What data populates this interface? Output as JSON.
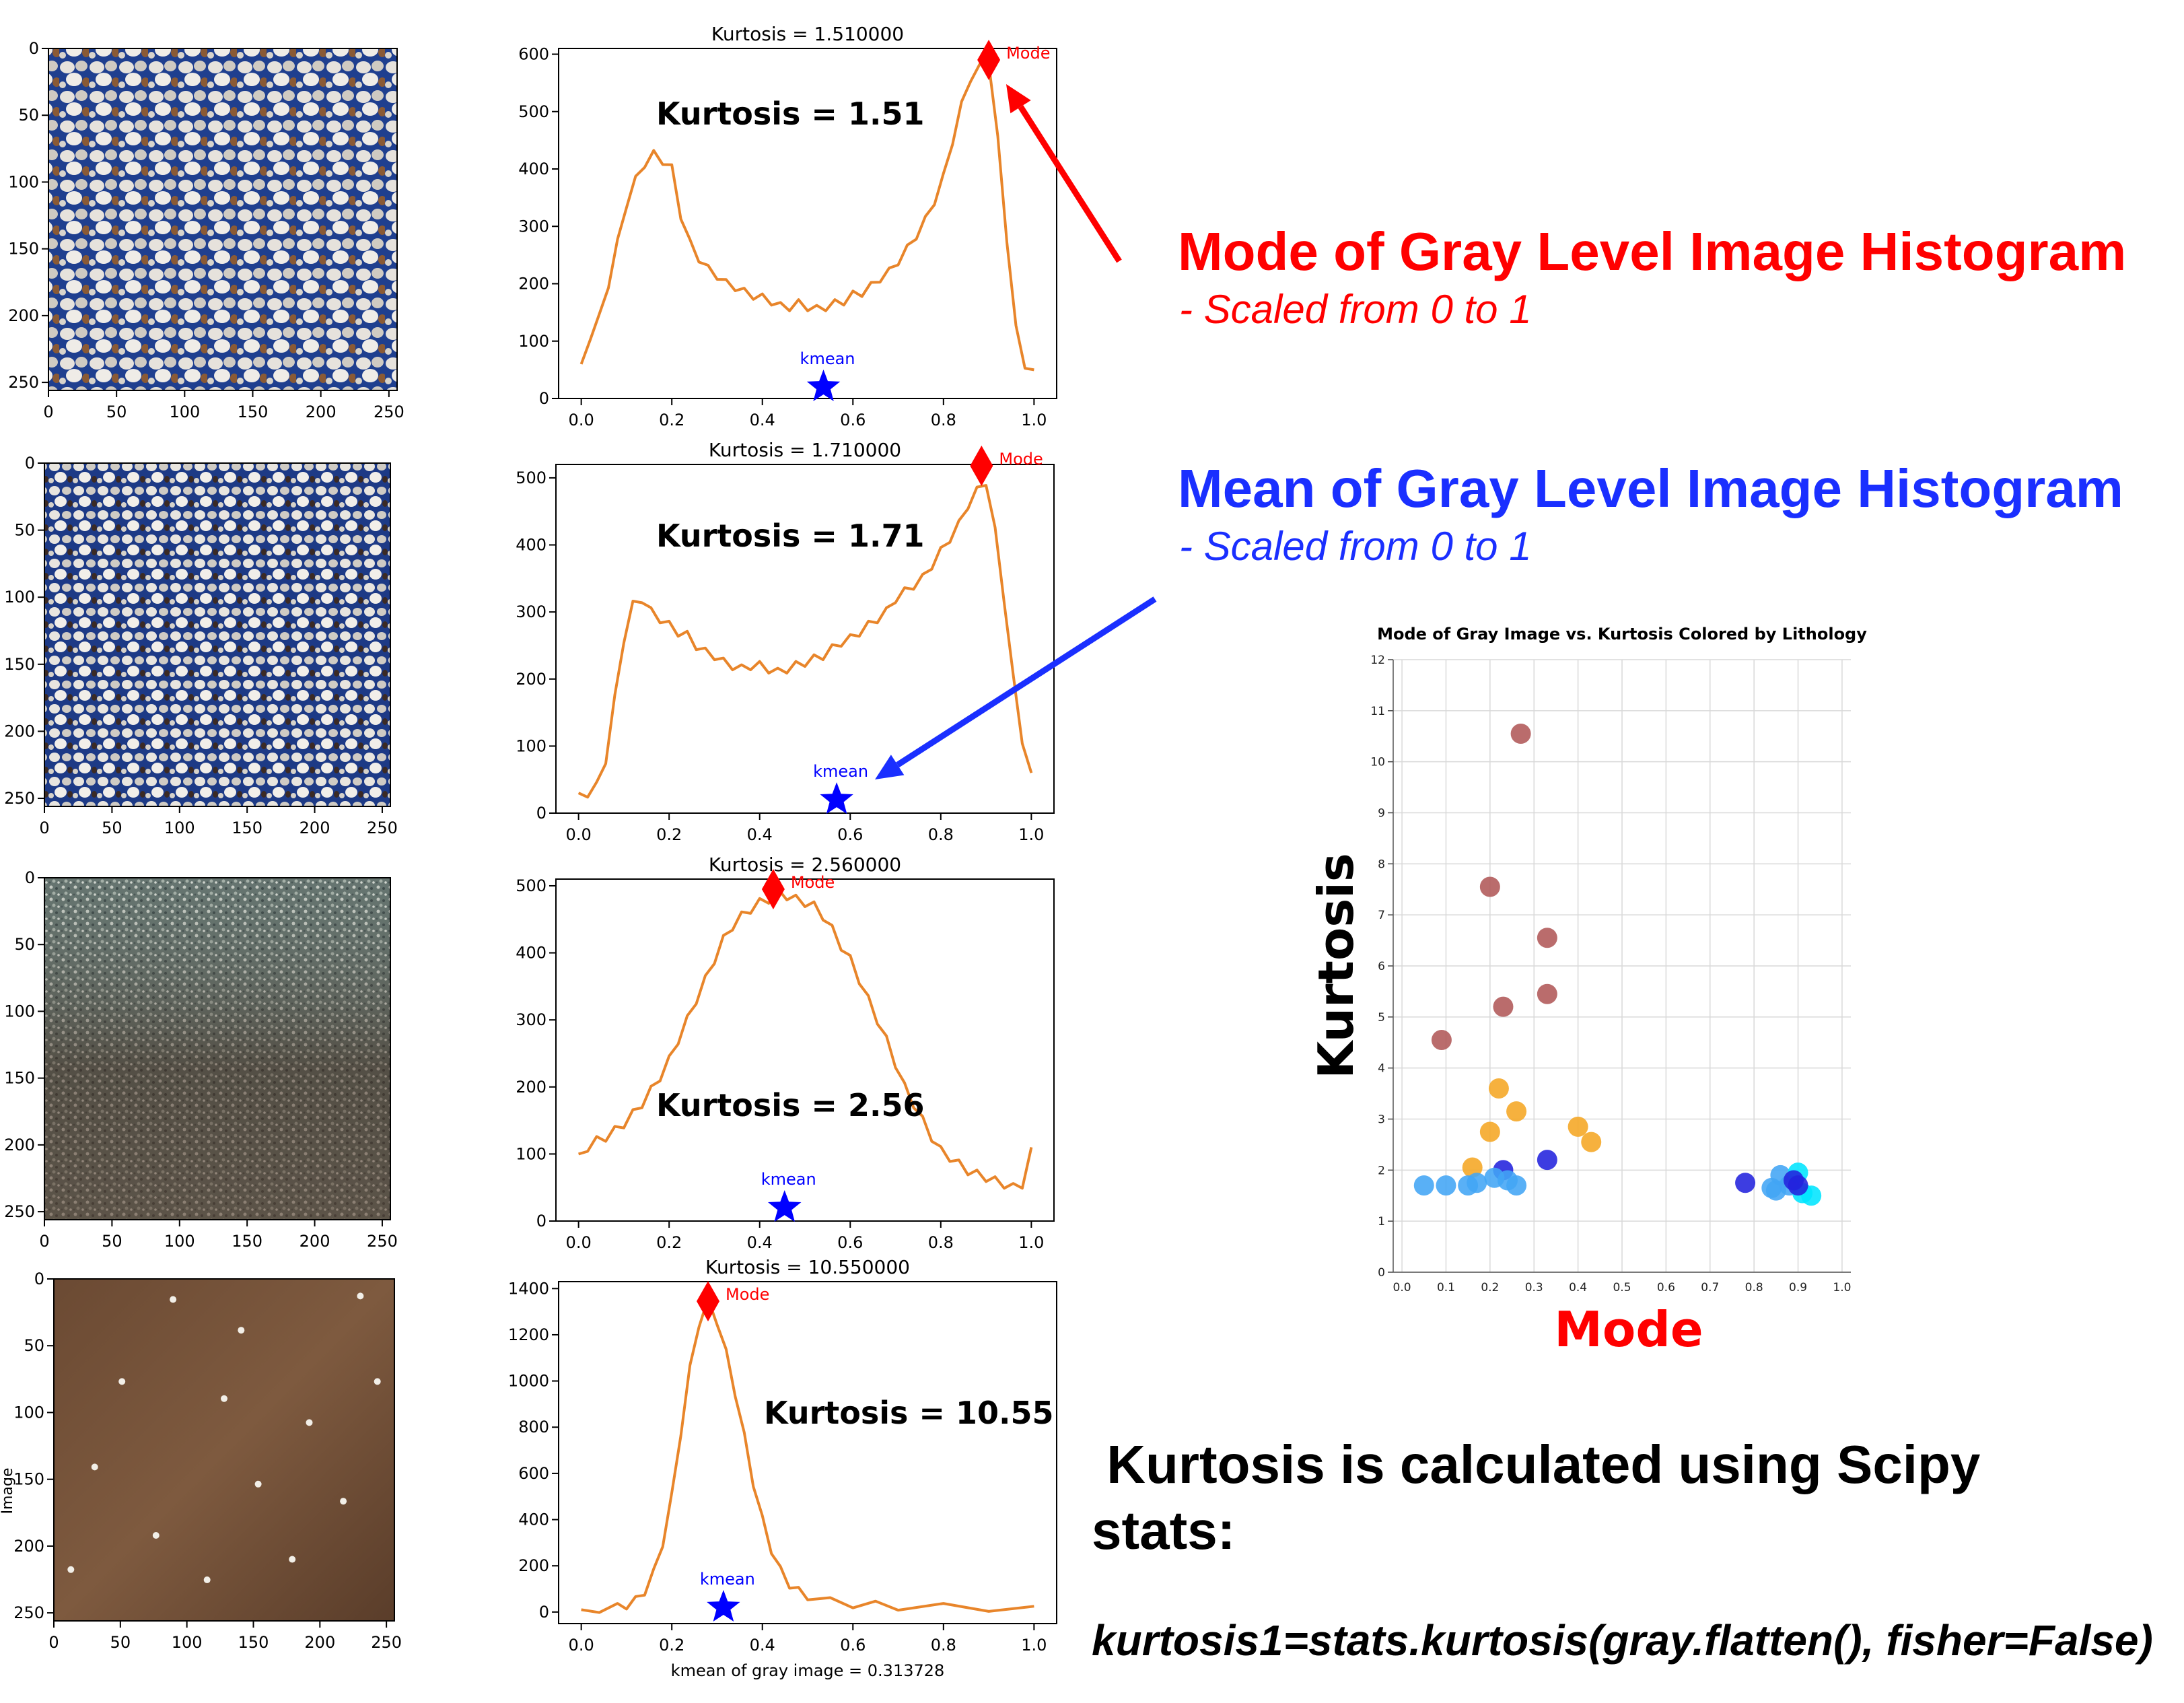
{
  "colors": {
    "histogram_line": "#e8852a",
    "mode_marker": "#ff0000",
    "kmean_marker": "#0000ff",
    "heading_red": "#ff0000",
    "heading_blue": "#1a2fff",
    "scatter_brown": "#b05858",
    "scatter_orange": "#f5a623",
    "scatter_lightblue": "#42a5f5",
    "scatter_darkblue": "#2222dd",
    "scatter_cyan": "#00e5ff"
  },
  "thin_sections": [
    {
      "ylabel": "",
      "image": "thin-section-sandstone-1",
      "xticks": [
        "0",
        "50",
        "100",
        "150",
        "200",
        "250"
      ],
      "yticks": [
        "0",
        "50",
        "100",
        "150",
        "200",
        "250"
      ]
    },
    {
      "ylabel": "",
      "image": "thin-section-sandstone-2",
      "xticks": [
        "0",
        "50",
        "100",
        "150",
        "200",
        "250"
      ],
      "yticks": [
        "0",
        "50",
        "100",
        "150",
        "200",
        "250"
      ]
    },
    {
      "ylabel": "",
      "image": "thin-section-siltstone",
      "xticks": [
        "0",
        "50",
        "100",
        "150",
        "200",
        "250"
      ],
      "yticks": [
        "0",
        "50",
        "100",
        "150",
        "200",
        "250"
      ]
    },
    {
      "ylabel": "Image",
      "image": "thin-section-shale",
      "xticks": [
        "0",
        "50",
        "100",
        "150",
        "200",
        "250"
      ],
      "yticks": [
        "0",
        "50",
        "100",
        "150",
        "200",
        "250"
      ]
    }
  ],
  "chart_data": [
    {
      "type": "line",
      "title": "Kurtosis = 1.510000",
      "annotation": "Kurtosis = 1.51",
      "xlabel": "",
      "xlim": [
        -0.05,
        1.05
      ],
      "ylim": [
        0,
        610
      ],
      "xticks": [
        "0.0",
        "0.2",
        "0.4",
        "0.6",
        "0.8",
        "1.0"
      ],
      "yticks": [
        "0",
        "100",
        "200",
        "300",
        "400",
        "500",
        "600"
      ],
      "mode": {
        "x": 0.9,
        "y": 590,
        "label": "Mode"
      },
      "kmean": {
        "x": 0.535,
        "y": 20,
        "label": "kmean"
      },
      "series": [
        {
          "x": [
            0.0,
            0.02,
            0.04,
            0.06,
            0.08,
            0.1,
            0.12,
            0.14,
            0.16,
            0.18,
            0.2,
            0.22,
            0.24,
            0.26,
            0.28,
            0.3,
            0.32,
            0.34,
            0.36,
            0.38,
            0.4,
            0.42,
            0.44,
            0.46,
            0.48,
            0.5,
            0.52,
            0.54,
            0.56,
            0.58,
            0.6,
            0.62,
            0.64,
            0.66,
            0.68,
            0.7,
            0.72,
            0.74,
            0.76,
            0.78,
            0.8,
            0.82,
            0.84,
            0.86,
            0.88,
            0.9,
            0.92,
            0.94,
            0.96,
            0.98,
            1.0
          ],
          "y": [
            60,
            110,
            140,
            200,
            270,
            340,
            380,
            410,
            425,
            415,
            400,
            320,
            270,
            245,
            225,
            215,
            200,
            195,
            185,
            180,
            175,
            170,
            160,
            160,
            165,
            160,
            155,
            160,
            165,
            170,
            180,
            185,
            195,
            210,
            220,
            240,
            260,
            285,
            310,
            345,
            385,
            450,
            510,
            560,
            575,
            590,
            450,
            280,
            120,
            60,
            50
          ]
        }
      ]
    },
    {
      "type": "line",
      "title": "Kurtosis = 1.710000",
      "annotation": "Kurtosis = 1.71",
      "xlabel": "",
      "xlim": [
        -0.05,
        1.05
      ],
      "ylim": [
        0,
        520
      ],
      "xticks": [
        "0.0",
        "0.2",
        "0.4",
        "0.6",
        "0.8",
        "1.0"
      ],
      "yticks": [
        "0",
        "100",
        "200",
        "300",
        "400",
        "500"
      ],
      "mode": {
        "x": 0.89,
        "y": 518,
        "label": "Mode"
      },
      "kmean": {
        "x": 0.57,
        "y": 20,
        "label": "kmean"
      },
      "series": [
        {
          "x": [
            0.0,
            0.02,
            0.04,
            0.06,
            0.08,
            0.1,
            0.12,
            0.14,
            0.16,
            0.18,
            0.2,
            0.22,
            0.24,
            0.26,
            0.28,
            0.3,
            0.32,
            0.34,
            0.36,
            0.38,
            0.4,
            0.42,
            0.44,
            0.46,
            0.48,
            0.5,
            0.52,
            0.54,
            0.56,
            0.58,
            0.6,
            0.62,
            0.64,
            0.66,
            0.68,
            0.7,
            0.72,
            0.74,
            0.76,
            0.78,
            0.8,
            0.82,
            0.84,
            0.86,
            0.88,
            0.9,
            0.92,
            0.94,
            0.96,
            0.98,
            1.0
          ],
          "y": [
            30,
            30,
            40,
            80,
            170,
            260,
            310,
            320,
            300,
            290,
            280,
            270,
            265,
            250,
            240,
            235,
            225,
            220,
            215,
            220,
            220,
            215,
            210,
            215,
            220,
            225,
            230,
            235,
            245,
            255,
            260,
            270,
            280,
            290,
            300,
            320,
            330,
            340,
            350,
            370,
            390,
            410,
            430,
            460,
            480,
            495,
            420,
            320,
            200,
            110,
            60
          ]
        }
      ]
    },
    {
      "type": "line",
      "title": "Kurtosis = 2.560000",
      "annotation": "Kurtosis = 2.56",
      "xlabel": "",
      "xlim": [
        -0.05,
        1.05
      ],
      "ylim": [
        0,
        510
      ],
      "xticks": [
        "0.0",
        "0.2",
        "0.4",
        "0.6",
        "0.8",
        "1.0"
      ],
      "yticks": [
        "0",
        "100",
        "200",
        "300",
        "400",
        "500"
      ],
      "mode": {
        "x": 0.43,
        "y": 495,
        "label": "Mode"
      },
      "kmean": {
        "x": 0.455,
        "y": 20,
        "label": "kmean"
      },
      "series": [
        {
          "x": [
            0.0,
            0.02,
            0.04,
            0.06,
            0.08,
            0.1,
            0.12,
            0.14,
            0.16,
            0.18,
            0.2,
            0.22,
            0.24,
            0.26,
            0.28,
            0.3,
            0.32,
            0.34,
            0.36,
            0.38,
            0.4,
            0.42,
            0.44,
            0.46,
            0.48,
            0.5,
            0.52,
            0.54,
            0.56,
            0.58,
            0.6,
            0.62,
            0.64,
            0.66,
            0.68,
            0.7,
            0.72,
            0.74,
            0.76,
            0.78,
            0.8,
            0.82,
            0.84,
            0.86,
            0.88,
            0.9,
            0.92,
            0.94,
            0.96,
            0.98,
            1.0
          ],
          "y": [
            100,
            110,
            120,
            125,
            135,
            145,
            160,
            175,
            195,
            215,
            240,
            270,
            300,
            330,
            360,
            390,
            420,
            440,
            455,
            465,
            475,
            480,
            490,
            485,
            480,
            475,
            470,
            455,
            435,
            410,
            390,
            360,
            330,
            300,
            270,
            235,
            200,
            175,
            150,
            125,
            105,
            95,
            85,
            75,
            70,
            65,
            60,
            55,
            50,
            55,
            110
          ]
        }
      ]
    },
    {
      "type": "line",
      "title": "Kurtosis = 10.550000",
      "annotation": "Kurtosis = 10.55",
      "xlabel": "kmean of gray image = 0.313728",
      "xlim": [
        -0.05,
        1.05
      ],
      "ylim": [
        -50,
        1430
      ],
      "xticks": [
        "0.0",
        "0.2",
        "0.4",
        "0.6",
        "0.8",
        "1.0"
      ],
      "yticks": [
        "0",
        "200",
        "400",
        "600",
        "800",
        "1000",
        "1200",
        "1400"
      ],
      "mode": {
        "x": 0.28,
        "y": 1345,
        "label": "Mode"
      },
      "kmean": {
        "x": 0.314,
        "y": 20,
        "label": "kmean"
      },
      "series": [
        {
          "x": [
            0.0,
            0.04,
            0.08,
            0.1,
            0.12,
            0.14,
            0.16,
            0.18,
            0.2,
            0.22,
            0.24,
            0.26,
            0.28,
            0.3,
            0.32,
            0.34,
            0.36,
            0.38,
            0.4,
            0.42,
            0.44,
            0.46,
            0.48,
            0.5,
            0.55,
            0.6,
            0.65,
            0.7,
            0.8,
            0.9,
            1.0
          ],
          "y": [
            10,
            15,
            20,
            30,
            50,
            90,
            170,
            300,
            500,
            780,
            1050,
            1250,
            1340,
            1260,
            1120,
            950,
            760,
            560,
            400,
            270,
            180,
            120,
            90,
            70,
            45,
            35,
            30,
            25,
            20,
            20,
            25
          ]
        }
      ]
    },
    {
      "type": "scatter",
      "title": "Mode of Gray Image vs. Kurtosis Colored by Lithology",
      "xlabel": "Mode",
      "ylabel": "Kurtosis",
      "xlim": [
        -0.02,
        1.02
      ],
      "ylim": [
        0,
        12
      ],
      "xticks": [
        "0.0",
        "0.1",
        "0.2",
        "0.3",
        "0.4",
        "0.5",
        "0.6",
        "0.7",
        "0.8",
        "0.9",
        "1.0"
      ],
      "yticks": [
        "0",
        "1",
        "2",
        "3",
        "4",
        "5",
        "6",
        "7",
        "8",
        "9",
        "10",
        "11",
        "12"
      ],
      "grid": true,
      "points": [
        {
          "x": 0.27,
          "y": 10.55,
          "c": "scatter_brown"
        },
        {
          "x": 0.2,
          "y": 7.55,
          "c": "scatter_brown"
        },
        {
          "x": 0.33,
          "y": 6.55,
          "c": "scatter_brown"
        },
        {
          "x": 0.33,
          "y": 5.45,
          "c": "scatter_brown"
        },
        {
          "x": 0.23,
          "y": 5.2,
          "c": "scatter_brown"
        },
        {
          "x": 0.09,
          "y": 4.55,
          "c": "scatter_brown"
        },
        {
          "x": 0.22,
          "y": 3.6,
          "c": "scatter_orange"
        },
        {
          "x": 0.26,
          "y": 3.15,
          "c": "scatter_orange"
        },
        {
          "x": 0.4,
          "y": 2.85,
          "c": "scatter_orange"
        },
        {
          "x": 0.2,
          "y": 2.75,
          "c": "scatter_orange"
        },
        {
          "x": 0.43,
          "y": 2.55,
          "c": "scatter_orange"
        },
        {
          "x": 0.16,
          "y": 2.05,
          "c": "scatter_orange"
        },
        {
          "x": 0.33,
          "y": 2.2,
          "c": "scatter_darkblue"
        },
        {
          "x": 0.23,
          "y": 2.0,
          "c": "scatter_darkblue"
        },
        {
          "x": 0.05,
          "y": 1.7,
          "c": "scatter_lightblue"
        },
        {
          "x": 0.1,
          "y": 1.7,
          "c": "scatter_lightblue"
        },
        {
          "x": 0.15,
          "y": 1.7,
          "c": "scatter_lightblue"
        },
        {
          "x": 0.17,
          "y": 1.75,
          "c": "scatter_lightblue"
        },
        {
          "x": 0.21,
          "y": 1.85,
          "c": "scatter_lightblue"
        },
        {
          "x": 0.24,
          "y": 1.8,
          "c": "scatter_lightblue"
        },
        {
          "x": 0.26,
          "y": 1.7,
          "c": "scatter_lightblue"
        },
        {
          "x": 0.78,
          "y": 1.75,
          "c": "scatter_darkblue"
        },
        {
          "x": 0.84,
          "y": 1.65,
          "c": "scatter_lightblue"
        },
        {
          "x": 0.85,
          "y": 1.6,
          "c": "scatter_lightblue"
        },
        {
          "x": 0.86,
          "y": 1.9,
          "c": "scatter_lightblue"
        },
        {
          "x": 0.88,
          "y": 1.7,
          "c": "scatter_lightblue"
        },
        {
          "x": 0.9,
          "y": 1.95,
          "c": "scatter_cyan"
        },
        {
          "x": 0.91,
          "y": 1.55,
          "c": "scatter_cyan"
        },
        {
          "x": 0.93,
          "y": 1.5,
          "c": "scatter_cyan"
        },
        {
          "x": 0.89,
          "y": 1.8,
          "c": "scatter_darkblue"
        },
        {
          "x": 0.9,
          "y": 1.7,
          "c": "scatter_darkblue"
        }
      ]
    }
  ],
  "annotations": {
    "mode_heading": "Mode of Gray Level Image Histogram",
    "mode_subheading": "- Scaled from 0 to 1",
    "mean_heading": "Mean of Gray Level Image Histogram",
    "mean_subheading": "- Scaled from 0 to 1",
    "kurtosis_note_line1": " Kurtosis is calculated using Scipy",
    "kurtosis_note_line2": "stats:",
    "kurtosis_code": "kurtosis1=stats.kurtosis(gray.flatten(), fisher=False)"
  }
}
